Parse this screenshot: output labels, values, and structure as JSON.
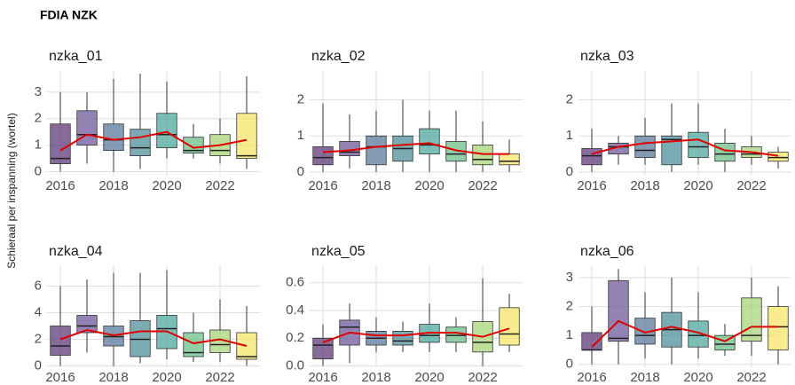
{
  "title": "FDIA NZK",
  "y_label": "Schieraal per inspanning (wortel)",
  "chart_data": [
    {
      "type": "boxplot",
      "title": "nzka_01",
      "years": [
        2016,
        2017,
        2018,
        2019,
        2020,
        2021,
        2022,
        2023
      ],
      "low": [
        0,
        0.3,
        0,
        0.1,
        0.5,
        0.5,
        0.3,
        0.1
      ],
      "q1": [
        0.3,
        1.0,
        0.8,
        0.6,
        0.9,
        0.7,
        0.6,
        0.5
      ],
      "median": [
        0.5,
        1.4,
        1.2,
        0.9,
        1.4,
        0.8,
        0.8,
        0.6
      ],
      "q3": [
        1.8,
        2.3,
        1.8,
        1.6,
        2.2,
        1.3,
        1.4,
        2.2
      ],
      "high": [
        3,
        3,
        3.5,
        3.7,
        3.4,
        1.8,
        2,
        3.6
      ],
      "mean": [
        0.8,
        1.4,
        1.2,
        1.3,
        1.5,
        0.9,
        1.0,
        1.2
      ],
      "xlim": [
        2015.5,
        2023.5
      ],
      "xticks": [
        2016,
        2018,
        2020,
        2022
      ],
      "ylim": [
        -0.15,
        3.8
      ],
      "yticks": [
        0,
        1,
        2,
        3
      ]
    },
    {
      "type": "boxplot",
      "title": "nzka_02",
      "years": [
        2016,
        2017,
        2018,
        2019,
        2020,
        2021,
        2022,
        2023
      ],
      "low": [
        0,
        0.1,
        0,
        0,
        0,
        0,
        0,
        0
      ],
      "q1": [
        0.2,
        0.45,
        0.2,
        0.3,
        0.5,
        0.3,
        0.2,
        0.2
      ],
      "median": [
        0.4,
        0.55,
        0.7,
        0.65,
        0.75,
        0.5,
        0.35,
        0.3
      ],
      "q3": [
        0.7,
        0.85,
        1.0,
        1.0,
        1.2,
        0.85,
        0.75,
        0.5
      ],
      "high": [
        1.9,
        1.6,
        1.7,
        2.0,
        1.7,
        1.7,
        1.4,
        0.9
      ],
      "mean": [
        0.55,
        0.6,
        0.7,
        0.75,
        0.8,
        0.6,
        0.5,
        0.5
      ],
      "xlim": [
        2015.5,
        2023.5
      ],
      "xticks": [
        2016,
        2018,
        2020,
        2022
      ],
      "ylim": [
        -0.1,
        2.8
      ],
      "yticks": [
        0,
        1,
        2
      ]
    },
    {
      "type": "boxplot",
      "title": "nzka_03",
      "years": [
        2016,
        2017,
        2018,
        2019,
        2020,
        2021,
        2022,
        2023
      ],
      "low": [
        0,
        0.2,
        0.2,
        0,
        0.2,
        0,
        0.2,
        0.1
      ],
      "q1": [
        0.2,
        0.5,
        0.4,
        0.2,
        0.4,
        0.3,
        0.4,
        0.3
      ],
      "median": [
        0.45,
        0.7,
        0.6,
        0.9,
        0.7,
        0.5,
        0.5,
        0.4
      ],
      "q3": [
        0.65,
        0.8,
        1.0,
        1.0,
        1.1,
        0.8,
        0.7,
        0.55
      ],
      "high": [
        1.2,
        1.0,
        1.5,
        1.9,
        1.9,
        1.2,
        1.0,
        0.7
      ],
      "mean": [
        0.5,
        0.7,
        0.8,
        0.85,
        0.9,
        0.6,
        0.55,
        0.45
      ],
      "xlim": [
        2015.5,
        2023.5
      ],
      "xticks": [
        2016,
        2018,
        2020,
        2022
      ],
      "ylim": [
        -0.1,
        2.8
      ],
      "yticks": [
        0,
        1,
        2
      ]
    },
    {
      "type": "boxplot",
      "title": "nzka_04",
      "years": [
        2016,
        2017,
        2018,
        2019,
        2020,
        2021,
        2022,
        2023
      ],
      "low": [
        0,
        1,
        0,
        0.2,
        0.5,
        0.3,
        0.3,
        0
      ],
      "q1": [
        0.8,
        2.5,
        1.5,
        0.7,
        1.3,
        0.7,
        1.0,
        0.5
      ],
      "median": [
        1.5,
        3,
        2.2,
        2.0,
        2.8,
        1.0,
        1.6,
        0.7
      ],
      "q3": [
        3,
        3.8,
        3,
        3.4,
        3.8,
        2.5,
        2.7,
        2.5
      ],
      "high": [
        6,
        6.5,
        7,
        7,
        7.2,
        4,
        5,
        4.5
      ],
      "mean": [
        2.0,
        2.7,
        2.3,
        2.6,
        2.6,
        1.7,
        2.0,
        1.5
      ],
      "xlim": [
        2015.5,
        2023.5
      ],
      "xticks": [
        2016,
        2018,
        2020,
        2022
      ],
      "ylim": [
        -0.1,
        7.5
      ],
      "yticks": [
        0,
        2,
        4,
        6
      ]
    },
    {
      "type": "boxplot",
      "title": "nzka_05",
      "years": [
        2016,
        2017,
        2018,
        2019,
        2020,
        2021,
        2022,
        2023
      ],
      "low": [
        0,
        0.02,
        0.1,
        0.1,
        0.1,
        0.1,
        0,
        0.1
      ],
      "q1": [
        0.05,
        0.15,
        0.15,
        0.15,
        0.17,
        0.17,
        0.1,
        0.15
      ],
      "median": [
        0.15,
        0.28,
        0.2,
        0.18,
        0.22,
        0.22,
        0.17,
        0.23
      ],
      "q3": [
        0.2,
        0.33,
        0.25,
        0.25,
        0.3,
        0.28,
        0.32,
        0.42
      ],
      "high": [
        0.3,
        0.45,
        0.35,
        0.32,
        0.45,
        0.35,
        0.63,
        0.52
      ],
      "mean": [
        0.17,
        0.24,
        0.22,
        0.22,
        0.24,
        0.24,
        0.21,
        0.27
      ],
      "xlim": [
        2015.5,
        2023.5
      ],
      "xticks": [
        2016,
        2018,
        2020,
        2022
      ],
      "ylim": [
        -0.01,
        0.72
      ],
      "yticks": [
        {
          "value": 0,
          "label": "0.0"
        },
        0.2,
        0.4,
        0.6
      ]
    },
    {
      "type": "boxplot",
      "title": "nzka_06",
      "years": [
        2016,
        2017,
        2018,
        2019,
        2020,
        2021,
        2022,
        2023
      ],
      "low": [
        0,
        0,
        0.2,
        0,
        0.2,
        0.3,
        0.3,
        0
      ],
      "q1": [
        0.5,
        0.8,
        0.7,
        0.6,
        0.6,
        0.5,
        0.8,
        0.5
      ],
      "median": [
        0.5,
        0.9,
        1.0,
        1.2,
        1.0,
        0.7,
        1.0,
        1.3
      ],
      "q3": [
        1.1,
        2.9,
        1.6,
        1.8,
        1.5,
        1.0,
        2.3,
        2.0
      ],
      "high": [
        2,
        3.3,
        2.5,
        3,
        2.5,
        1.4,
        3,
        2.7
      ],
      "mean": [
        0.6,
        1.5,
        1.1,
        1.3,
        1.1,
        0.8,
        1.3,
        1.3
      ],
      "xlim": [
        2015.5,
        2023.5
      ],
      "xticks": [
        2016,
        2018,
        2020,
        2022
      ],
      "ylim": [
        -0.1,
        3.4
      ],
      "yticks": [
        0,
        1,
        2,
        3
      ]
    }
  ],
  "box_colors": [
    "#5d3a7a",
    "#6f5a9c",
    "#5a7a9c",
    "#4f8f9a",
    "#4fa8a0",
    "#6cbf8a",
    "#a8d57a",
    "#f5e66a"
  ],
  "mean_color": "#e00000"
}
